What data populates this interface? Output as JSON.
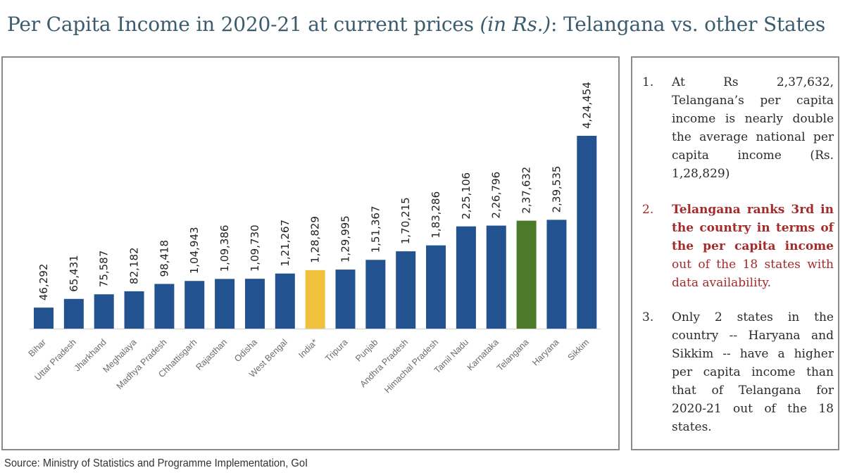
{
  "title": {
    "prefix": "Per Capita Income in 2020-21 at current prices ",
    "italic": "(in Rs.)",
    "suffix": ": Telangana vs. other States"
  },
  "chart_data": {
    "type": "bar",
    "title": "Per Capita Income in 2020-21 at current prices (in Rs.): Telangana vs. other States",
    "xlabel": "",
    "ylabel": "",
    "ylim": [
      0,
      424454
    ],
    "grid": false,
    "legend": "none",
    "categories": [
      "Bihar",
      "Uttar Pradesh",
      "Jharkhand",
      "Meghalaya",
      "Madhya Pradesh",
      "Chhattisgarh",
      "Rajasthan",
      "Odisha",
      "West Bengal",
      "India*",
      "Tripura",
      "Punjab",
      "Andhra Pradesh",
      "Himachal Pradesh",
      "Tamil Nadu",
      "Karnataka",
      "Telangana",
      "Haryana",
      "Sikkim"
    ],
    "values": [
      46292,
      65431,
      75587,
      82182,
      98418,
      104943,
      109386,
      109730,
      121267,
      128829,
      129995,
      151367,
      170215,
      183286,
      225106,
      226796,
      237632,
      239535,
      424454
    ],
    "value_labels": [
      "46,292",
      "65,431",
      "75,587",
      "82,182",
      "98,418",
      "1,04,943",
      "1,09,386",
      "1,09,730",
      "1,21,267",
      "1,28,829",
      "1,29,995",
      "1,51,367",
      "1,70,215",
      "1,83,286",
      "2,25,106",
      "2,26,796",
      "2,37,632",
      "2,39,535",
      "4,24,454"
    ],
    "colors": {
      "default": "#22528f",
      "India*": "#f2c13c",
      "Telangana": "#4a7a2a"
    }
  },
  "notes": [
    {
      "number": "1.",
      "text": "At Rs 2,37,632, Telangana’s per capita income is nearly double the average national per capita income (Rs. 1,28,829)"
    },
    {
      "number": "2.",
      "bold_text": "Telangana ranks 3rd in the country in terms of the per capita income",
      "text": " out of the 18 states with data availability."
    },
    {
      "number": "3.",
      "text": "Only 2 states in the country -- Haryana and Sikkim -- have a higher per capita income than that of Telangana for 2020-21 out of the 18 states."
    }
  ],
  "source": "Source: Ministry of Statistics and Programme Implementation, GoI"
}
